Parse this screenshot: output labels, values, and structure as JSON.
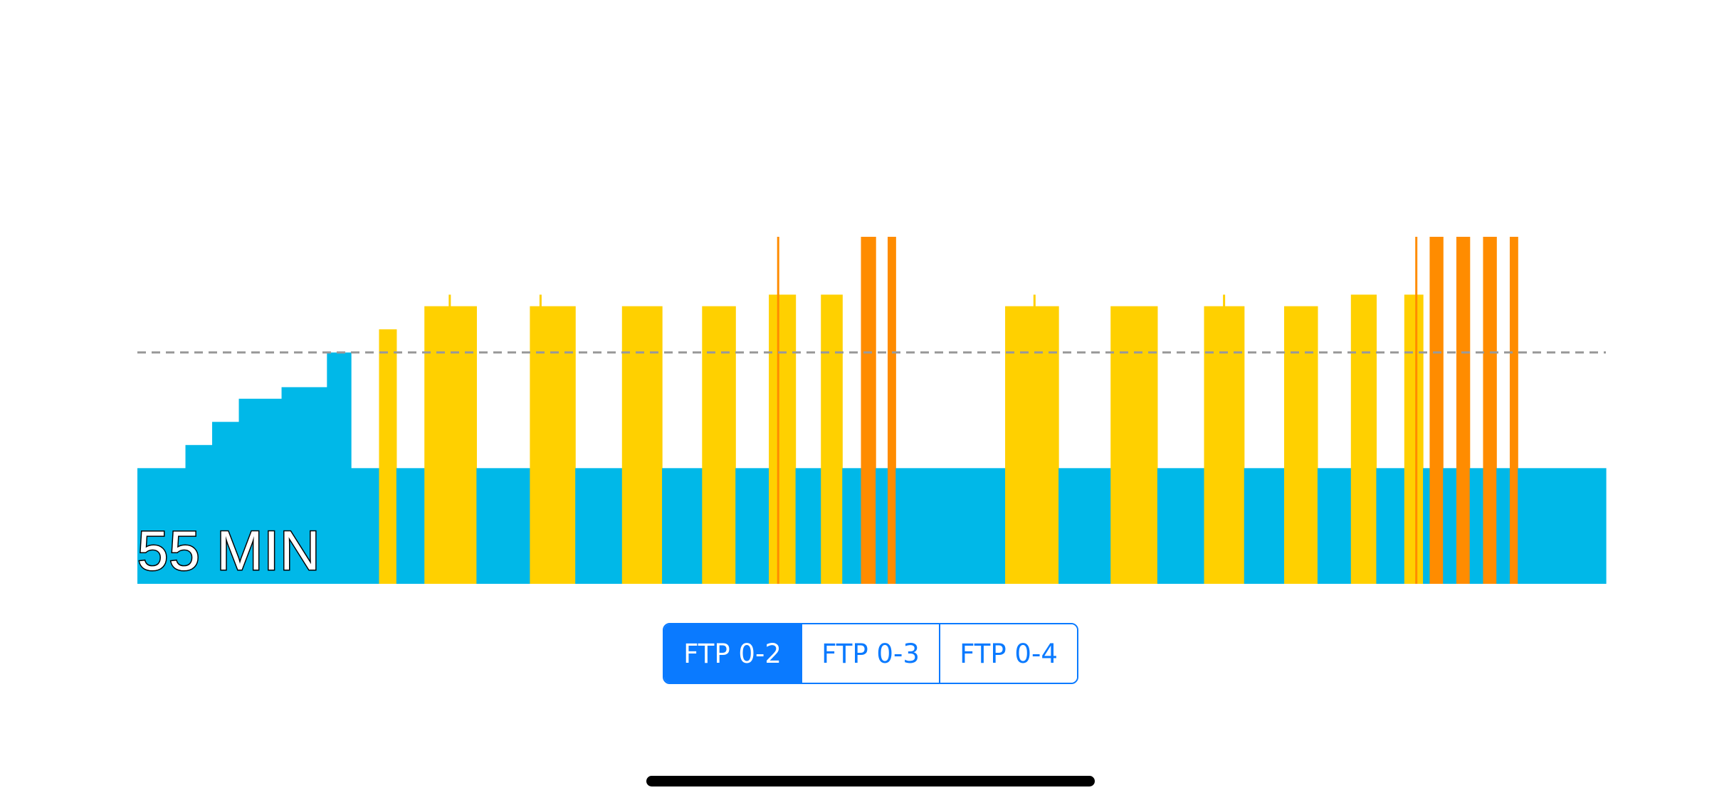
{
  "workout": {
    "duration_label": "55 MIN"
  },
  "ftp_selector": {
    "options": [
      "FTP 0-2",
      "FTP 0-3",
      "FTP 0-4"
    ],
    "selected_index": 0
  },
  "colors": {
    "recovery": "#00b8e8",
    "threshold": "#ffd000",
    "vo2": "#ff8c00",
    "ftp_line": "#999999",
    "accent": "#0a7aff"
  },
  "chart_data": {
    "type": "bar",
    "x_unit": "min",
    "y_unit": "% FTP",
    "xlim": [
      0,
      55
    ],
    "ylim": [
      0,
      150
    ],
    "ftp_reference": 100,
    "segments": [
      {
        "start": 0.0,
        "end": 1.8,
        "power": 50,
        "zone": "recovery"
      },
      {
        "start": 1.8,
        "end": 2.8,
        "power": 60,
        "zone": "recovery"
      },
      {
        "start": 2.8,
        "end": 3.8,
        "power": 70,
        "zone": "recovery"
      },
      {
        "start": 3.8,
        "end": 5.4,
        "power": 80,
        "zone": "recovery"
      },
      {
        "start": 5.4,
        "end": 7.1,
        "power": 85,
        "zone": "recovery"
      },
      {
        "start": 7.1,
        "end": 8.0,
        "power": 100,
        "zone": "recovery"
      },
      {
        "start": 8.0,
        "end": 9.05,
        "power": 50,
        "zone": "recovery"
      },
      {
        "start": 9.05,
        "end": 9.7,
        "power": 110,
        "zone": "threshold"
      },
      {
        "start": 9.7,
        "end": 10.75,
        "power": 50,
        "zone": "recovery"
      },
      {
        "start": 10.75,
        "end": 12.7,
        "power": 120,
        "zone": "threshold"
      },
      {
        "start": 12.7,
        "end": 14.7,
        "power": 50,
        "zone": "recovery"
      },
      {
        "start": 14.7,
        "end": 16.4,
        "power": 120,
        "zone": "threshold"
      },
      {
        "start": 16.4,
        "end": 18.15,
        "power": 50,
        "zone": "recovery"
      },
      {
        "start": 18.15,
        "end": 19.65,
        "power": 120,
        "zone": "threshold"
      },
      {
        "start": 19.65,
        "end": 21.15,
        "power": 50,
        "zone": "recovery"
      },
      {
        "start": 21.15,
        "end": 22.4,
        "power": 120,
        "zone": "threshold"
      },
      {
        "start": 22.4,
        "end": 23.65,
        "power": 50,
        "zone": "recovery"
      },
      {
        "start": 23.65,
        "end": 24.65,
        "power": 125,
        "zone": "threshold"
      },
      {
        "start": 24.65,
        "end": 25.6,
        "power": 50,
        "zone": "recovery"
      },
      {
        "start": 25.6,
        "end": 26.4,
        "power": 125,
        "zone": "threshold"
      },
      {
        "start": 26.4,
        "end": 27.1,
        "power": 50,
        "zone": "recovery"
      },
      {
        "start": 27.1,
        "end": 27.65,
        "power": 150,
        "zone": "vo2"
      },
      {
        "start": 27.65,
        "end": 28.1,
        "power": 50,
        "zone": "recovery"
      },
      {
        "start": 28.1,
        "end": 28.4,
        "power": 150,
        "zone": "vo2"
      },
      {
        "start": 28.4,
        "end": 32.5,
        "power": 50,
        "zone": "recovery"
      },
      {
        "start": 32.5,
        "end": 34.5,
        "power": 120,
        "zone": "threshold"
      },
      {
        "start": 34.5,
        "end": 36.45,
        "power": 50,
        "zone": "recovery"
      },
      {
        "start": 36.45,
        "end": 38.2,
        "power": 120,
        "zone": "threshold"
      },
      {
        "start": 38.2,
        "end": 39.95,
        "power": 50,
        "zone": "recovery"
      },
      {
        "start": 39.95,
        "end": 41.45,
        "power": 120,
        "zone": "threshold"
      },
      {
        "start": 41.45,
        "end": 42.95,
        "power": 50,
        "zone": "recovery"
      },
      {
        "start": 42.95,
        "end": 44.2,
        "power": 120,
        "zone": "threshold"
      },
      {
        "start": 44.2,
        "end": 45.45,
        "power": 50,
        "zone": "recovery"
      },
      {
        "start": 45.45,
        "end": 46.4,
        "power": 125,
        "zone": "threshold"
      },
      {
        "start": 46.4,
        "end": 47.45,
        "power": 50,
        "zone": "recovery"
      },
      {
        "start": 47.45,
        "end": 48.15,
        "power": 125,
        "zone": "threshold"
      },
      {
        "start": 48.15,
        "end": 48.4,
        "power": 50,
        "zone": "recovery"
      },
      {
        "start": 48.4,
        "end": 48.9,
        "power": 150,
        "zone": "vo2"
      },
      {
        "start": 48.9,
        "end": 49.4,
        "power": 50,
        "zone": "recovery"
      },
      {
        "start": 49.4,
        "end": 49.9,
        "power": 150,
        "zone": "vo2"
      },
      {
        "start": 49.9,
        "end": 50.4,
        "power": 50,
        "zone": "recovery"
      },
      {
        "start": 50.4,
        "end": 50.9,
        "power": 150,
        "zone": "vo2"
      },
      {
        "start": 50.9,
        "end": 51.4,
        "power": 50,
        "zone": "recovery"
      },
      {
        "start": 51.4,
        "end": 51.7,
        "power": 150,
        "zone": "vo2"
      },
      {
        "start": 51.7,
        "end": 55.0,
        "power": 50,
        "zone": "recovery"
      }
    ],
    "markers": [
      {
        "t": 11.7,
        "power": 125,
        "zone": "threshold"
      },
      {
        "t": 15.1,
        "power": 125,
        "zone": "threshold"
      },
      {
        "t": 24.0,
        "power": 150,
        "zone": "vo2"
      },
      {
        "t": 33.6,
        "power": 125,
        "zone": "threshold"
      },
      {
        "t": 40.7,
        "power": 125,
        "zone": "threshold"
      },
      {
        "t": 47.9,
        "power": 150,
        "zone": "vo2"
      }
    ]
  }
}
